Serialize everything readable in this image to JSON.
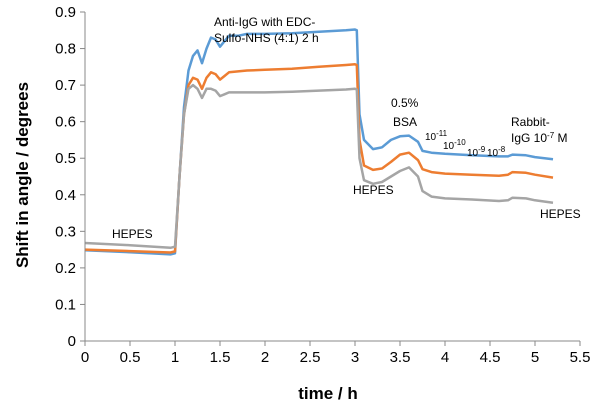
{
  "chart_data": {
    "type": "line",
    "title": "",
    "xlabel": "time / h",
    "ylabel": "Shift in angle / degrees",
    "xlim": [
      0,
      5.5
    ],
    "ylim": [
      0,
      0.9
    ],
    "x_ticks": [
      "0",
      "0.5",
      "1",
      "1.5",
      "2",
      "2.5",
      "3",
      "3.5",
      "4",
      "4.5",
      "5",
      "5.5"
    ],
    "y_ticks": [
      "0",
      "0.1",
      "0.2",
      "0.3",
      "0.4",
      "0.5",
      "0.6",
      "0.7",
      "0.8",
      "0.9"
    ],
    "grid": false,
    "legend": "none",
    "series": [
      {
        "color": "#5b9bd5",
        "points": [
          [
            0,
            0.248
          ],
          [
            0.5,
            0.243
          ],
          [
            0.95,
            0.237
          ],
          [
            1.0,
            0.24
          ],
          [
            1.05,
            0.45
          ],
          [
            1.1,
            0.64
          ],
          [
            1.15,
            0.74
          ],
          [
            1.2,
            0.78
          ],
          [
            1.25,
            0.795
          ],
          [
            1.3,
            0.76
          ],
          [
            1.35,
            0.8
          ],
          [
            1.4,
            0.83
          ],
          [
            1.45,
            0.825
          ],
          [
            1.5,
            0.805
          ],
          [
            1.55,
            0.82
          ],
          [
            1.6,
            0.835
          ],
          [
            1.7,
            0.835
          ],
          [
            1.8,
            0.84
          ],
          [
            2.0,
            0.84
          ],
          [
            2.3,
            0.842
          ],
          [
            2.6,
            0.846
          ],
          [
            2.9,
            0.85
          ],
          [
            3.0,
            0.852
          ],
          [
            3.02,
            0.85
          ],
          [
            3.05,
            0.62
          ],
          [
            3.1,
            0.55
          ],
          [
            3.2,
            0.525
          ],
          [
            3.3,
            0.53
          ],
          [
            3.4,
            0.55
          ],
          [
            3.5,
            0.56
          ],
          [
            3.6,
            0.562
          ],
          [
            3.7,
            0.545
          ],
          [
            3.75,
            0.52
          ],
          [
            3.85,
            0.515
          ],
          [
            4.0,
            0.512
          ],
          [
            4.3,
            0.508
          ],
          [
            4.6,
            0.505
          ],
          [
            4.7,
            0.505
          ],
          [
            4.75,
            0.51
          ],
          [
            4.9,
            0.508
          ],
          [
            5.0,
            0.503
          ],
          [
            5.2,
            0.497
          ]
        ]
      },
      {
        "color": "#ed7d31",
        "points": [
          [
            0,
            0.25
          ],
          [
            0.5,
            0.246
          ],
          [
            0.95,
            0.242
          ],
          [
            1.0,
            0.245
          ],
          [
            1.05,
            0.45
          ],
          [
            1.1,
            0.62
          ],
          [
            1.15,
            0.7
          ],
          [
            1.2,
            0.72
          ],
          [
            1.25,
            0.715
          ],
          [
            1.3,
            0.69
          ],
          [
            1.35,
            0.72
          ],
          [
            1.4,
            0.735
          ],
          [
            1.45,
            0.73
          ],
          [
            1.5,
            0.715
          ],
          [
            1.55,
            0.725
          ],
          [
            1.6,
            0.735
          ],
          [
            1.8,
            0.74
          ],
          [
            2.0,
            0.742
          ],
          [
            2.3,
            0.745
          ],
          [
            2.6,
            0.75
          ],
          [
            2.9,
            0.755
          ],
          [
            3.0,
            0.757
          ],
          [
            3.02,
            0.755
          ],
          [
            3.05,
            0.55
          ],
          [
            3.1,
            0.48
          ],
          [
            3.2,
            0.468
          ],
          [
            3.3,
            0.472
          ],
          [
            3.4,
            0.49
          ],
          [
            3.5,
            0.51
          ],
          [
            3.6,
            0.515
          ],
          [
            3.7,
            0.495
          ],
          [
            3.75,
            0.47
          ],
          [
            3.85,
            0.462
          ],
          [
            4.0,
            0.458
          ],
          [
            4.3,
            0.455
          ],
          [
            4.6,
            0.452
          ],
          [
            4.7,
            0.455
          ],
          [
            4.75,
            0.462
          ],
          [
            4.9,
            0.46
          ],
          [
            5.0,
            0.455
          ],
          [
            5.2,
            0.447
          ]
        ]
      },
      {
        "color": "#a5a5a5",
        "points": [
          [
            0,
            0.268
          ],
          [
            0.5,
            0.262
          ],
          [
            0.95,
            0.255
          ],
          [
            1.0,
            0.258
          ],
          [
            1.05,
            0.45
          ],
          [
            1.1,
            0.62
          ],
          [
            1.15,
            0.69
          ],
          [
            1.2,
            0.7
          ],
          [
            1.25,
            0.69
          ],
          [
            1.3,
            0.665
          ],
          [
            1.35,
            0.69
          ],
          [
            1.4,
            0.69
          ],
          [
            1.45,
            0.685
          ],
          [
            1.5,
            0.67
          ],
          [
            1.55,
            0.675
          ],
          [
            1.6,
            0.68
          ],
          [
            1.8,
            0.68
          ],
          [
            2.0,
            0.68
          ],
          [
            2.3,
            0.682
          ],
          [
            2.6,
            0.685
          ],
          [
            2.9,
            0.688
          ],
          [
            3.0,
            0.69
          ],
          [
            3.02,
            0.688
          ],
          [
            3.05,
            0.5
          ],
          [
            3.1,
            0.44
          ],
          [
            3.2,
            0.43
          ],
          [
            3.3,
            0.435
          ],
          [
            3.4,
            0.45
          ],
          [
            3.5,
            0.465
          ],
          [
            3.6,
            0.475
          ],
          [
            3.7,
            0.45
          ],
          [
            3.75,
            0.41
          ],
          [
            3.85,
            0.395
          ],
          [
            4.0,
            0.39
          ],
          [
            4.3,
            0.387
          ],
          [
            4.6,
            0.383
          ],
          [
            4.7,
            0.385
          ],
          [
            4.75,
            0.392
          ],
          [
            4.9,
            0.39
          ],
          [
            5.0,
            0.385
          ],
          [
            5.2,
            0.378
          ]
        ]
      }
    ],
    "annotations": {
      "hepes_start": "HEPES",
      "anti_igg_1": "Anti-IgG  with EDC-",
      "anti_igg_2": "Sulfo-NHS (4:1) 2 h",
      "hepes_mid": "HEPES",
      "bsa_1": "0.5%",
      "bsa_2": "BSA",
      "c11_base": "10",
      "c11_exp": "-11",
      "c10_base": "10",
      "c10_exp": "-10",
      "c9_base": "10",
      "c9_exp": "-9",
      "c8_base": "10",
      "c8_exp": "-8",
      "rabbit_1": "Rabbit-",
      "rabbit_2": "IgG 10",
      "rabbit_exp": "-7",
      "rabbit_unit": " M",
      "hepes_end": "HEPES"
    }
  }
}
